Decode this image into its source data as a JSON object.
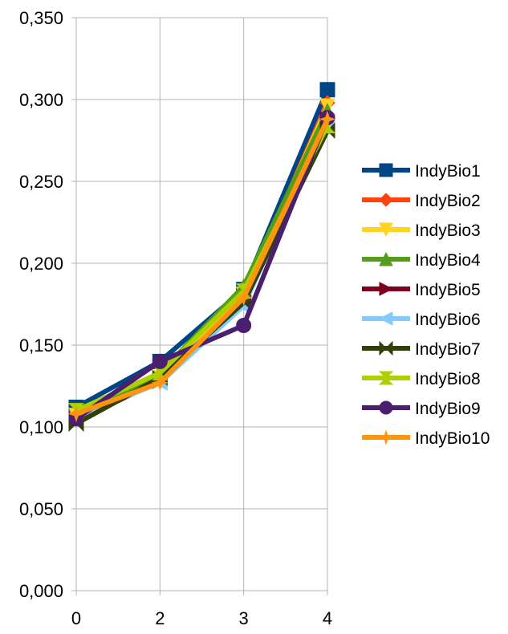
{
  "chart_data": {
    "type": "line",
    "title": "",
    "xlabel": "",
    "ylabel": "",
    "x": [
      "0",
      "2",
      "3",
      "4"
    ],
    "y_ticks": [
      "0,000",
      "0,050",
      "0,100",
      "0,150",
      "0,200",
      "0,250",
      "0,300",
      "0,350"
    ],
    "ylim": [
      0,
      0.35
    ],
    "grid": "horizontal",
    "legend_position": "right",
    "series": [
      {
        "name": "IndyBio1",
        "color": "#004586",
        "marker": "square",
        "values": [
          0.112,
          0.14,
          0.184,
          0.306
        ]
      },
      {
        "name": "IndyBio2",
        "color": "#ff420e",
        "marker": "diamond",
        "values": [
          0.108,
          0.129,
          0.18,
          0.298
        ]
      },
      {
        "name": "IndyBio3",
        "color": "#ffd320",
        "marker": "triangle-down",
        "values": [
          0.107,
          0.13,
          0.181,
          0.296
        ]
      },
      {
        "name": "IndyBio4",
        "color": "#579d1c",
        "marker": "triangle-up",
        "values": [
          0.106,
          0.133,
          0.186,
          0.293
        ]
      },
      {
        "name": "IndyBio5",
        "color": "#7e0021",
        "marker": "triangle-right",
        "values": [
          0.104,
          0.128,
          0.176,
          0.288
        ]
      },
      {
        "name": "IndyBio6",
        "color": "#83caff",
        "marker": "triangle-left",
        "values": [
          0.106,
          0.127,
          0.174,
          0.287
        ]
      },
      {
        "name": "IndyBio7",
        "color": "#314004",
        "marker": "bowtie",
        "values": [
          0.102,
          0.13,
          0.176,
          0.281
        ]
      },
      {
        "name": "IndyBio8",
        "color": "#aecf00",
        "marker": "hourglass",
        "values": [
          0.11,
          0.133,
          0.183,
          0.284
        ]
      },
      {
        "name": "IndyBio9",
        "color": "#4b1f6f",
        "marker": "circle",
        "values": [
          0.105,
          0.14,
          0.162,
          0.289
        ]
      },
      {
        "name": "IndyBio10",
        "color": "#ff950e",
        "marker": "star",
        "values": [
          0.108,
          0.127,
          0.179,
          0.288
        ]
      }
    ]
  }
}
